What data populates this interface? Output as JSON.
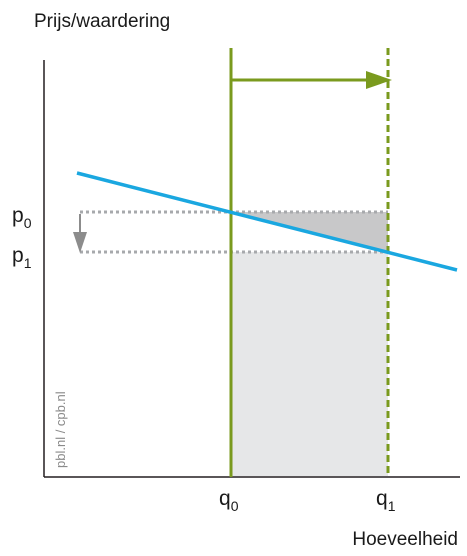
{
  "axes": {
    "y_title": "Prijs/waardering",
    "x_title": "Hoeveelheid"
  },
  "price_levels": {
    "p0": {
      "main": "p",
      "sub": "0"
    },
    "p1": {
      "main": "p",
      "sub": "1"
    }
  },
  "quantity_levels": {
    "q0": {
      "main": "q",
      "sub": "0"
    },
    "q1": {
      "main": "q",
      "sub": "1"
    }
  },
  "credit": "pbl.nl / cpb.nl",
  "colors": {
    "demand_line": "#1aa7e0",
    "supply_line": "#7a9a1e",
    "shaded_triangle": "#c8c8c9",
    "shaded_rect": "#e6e7e8",
    "dotted": "#a7a9ac",
    "axis": "#231f20",
    "price_arrow": "#8c8c8c"
  }
}
